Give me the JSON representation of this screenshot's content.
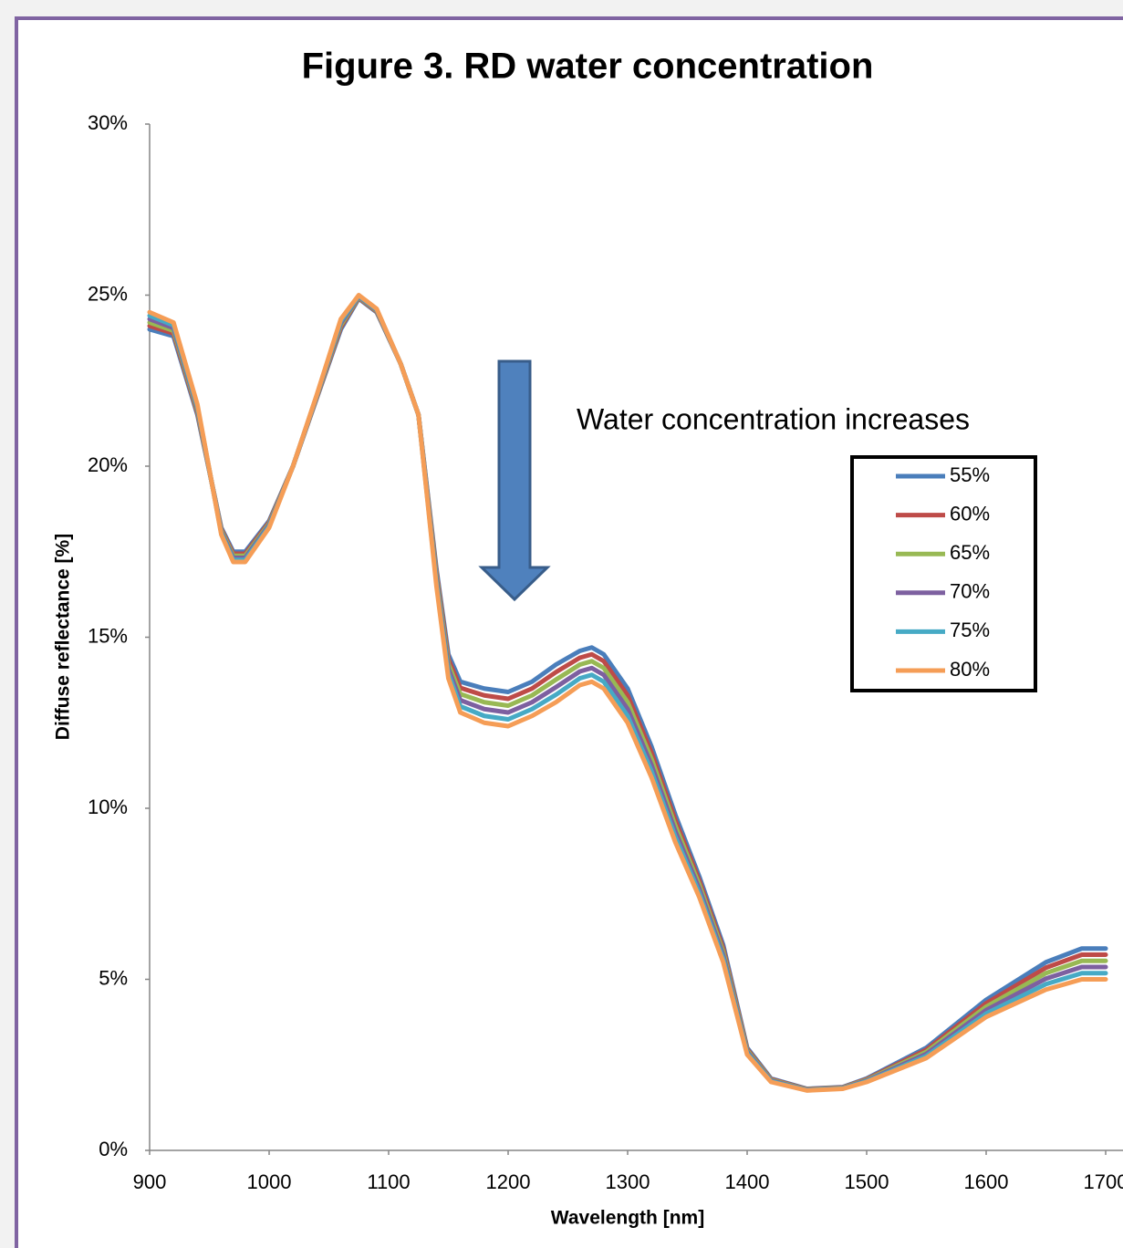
{
  "chart_data": {
    "type": "line",
    "title": "Figure 3. RD water concentration",
    "xlabel": "Wavelength [nm]",
    "ylabel": "Diffuse reflectance [%]",
    "annotation": "Water concentration increases",
    "xlim": [
      900,
      1700
    ],
    "xticks": [
      900,
      1000,
      1100,
      1200,
      1300,
      1400,
      1500,
      1600,
      1700
    ],
    "ylim": [
      0,
      30
    ],
    "yticks": [
      {
        "value": 0,
        "label": "0%"
      },
      {
        "value": 5,
        "label": "5%"
      },
      {
        "value": 10,
        "label": "10%"
      },
      {
        "value": 15,
        "label": "15%"
      },
      {
        "value": 20,
        "label": "20%"
      },
      {
        "value": 25,
        "label": "25%"
      },
      {
        "value": 30,
        "label": "30%"
      }
    ],
    "grid": false,
    "x": [
      900,
      920,
      940,
      960,
      970,
      980,
      1000,
      1020,
      1040,
      1060,
      1075,
      1090,
      1110,
      1125,
      1140,
      1150,
      1160,
      1180,
      1200,
      1220,
      1240,
      1260,
      1270,
      1280,
      1300,
      1320,
      1340,
      1360,
      1380,
      1400,
      1420,
      1450,
      1480,
      1500,
      1550,
      1600,
      1650,
      1680,
      1700
    ],
    "series": [
      {
        "name": "55%",
        "color": "#4a7ebb",
        "values": [
          24.0,
          23.8,
          21.5,
          18.2,
          17.5,
          17.5,
          18.4,
          20.0,
          22.0,
          24.0,
          24.9,
          24.5,
          23.0,
          21.5,
          17.0,
          14.5,
          13.7,
          13.5,
          13.4,
          13.7,
          14.2,
          14.6,
          14.7,
          14.5,
          13.5,
          11.8,
          9.8,
          8.0,
          6.0,
          3.0,
          2.1,
          1.8,
          1.85,
          2.1,
          3.0,
          4.4,
          5.5,
          5.9,
          5.9
        ]
      },
      {
        "name": "60%",
        "color": "#be4b48",
        "values": [
          24.1,
          23.88,
          21.56,
          18.16,
          17.44,
          17.44,
          18.36,
          20.0,
          22.02,
          24.06,
          24.92,
          24.52,
          23.0,
          21.5,
          16.9,
          14.36,
          13.52,
          13.3,
          13.2,
          13.5,
          13.98,
          14.4,
          14.5,
          14.3,
          13.3,
          11.62,
          9.64,
          7.88,
          5.9,
          2.96,
          2.08,
          1.79,
          1.84,
          2.08,
          2.94,
          4.3,
          5.34,
          5.72,
          5.72
        ]
      },
      {
        "name": "65%",
        "color": "#98b954",
        "values": [
          24.2,
          23.96,
          21.62,
          18.12,
          17.38,
          17.38,
          18.32,
          20.0,
          22.04,
          24.12,
          24.94,
          24.54,
          23.0,
          21.5,
          16.8,
          14.22,
          13.34,
          13.1,
          13.0,
          13.3,
          13.76,
          14.2,
          14.3,
          14.1,
          13.1,
          11.44,
          9.48,
          7.76,
          5.8,
          2.92,
          2.06,
          1.78,
          1.83,
          2.06,
          2.88,
          4.2,
          5.18,
          5.54,
          5.54
        ]
      },
      {
        "name": "70%",
        "color": "#7d60a0",
        "values": [
          24.3,
          24.04,
          21.68,
          18.08,
          17.32,
          17.32,
          18.28,
          20.0,
          22.06,
          24.18,
          24.96,
          24.56,
          23.0,
          21.5,
          16.7,
          14.08,
          13.16,
          12.9,
          12.8,
          13.1,
          13.54,
          14.0,
          14.1,
          13.9,
          12.9,
          11.26,
          9.32,
          7.64,
          5.7,
          2.88,
          2.04,
          1.77,
          1.82,
          2.04,
          2.82,
          4.1,
          5.02,
          5.36,
          5.36
        ]
      },
      {
        "name": "75%",
        "color": "#46aac5",
        "values": [
          24.4,
          24.12,
          21.74,
          18.04,
          17.26,
          17.26,
          18.24,
          20.0,
          22.08,
          24.24,
          24.98,
          24.58,
          23.0,
          21.5,
          16.6,
          13.94,
          12.98,
          12.7,
          12.6,
          12.9,
          13.32,
          13.8,
          13.9,
          13.7,
          12.7,
          11.08,
          9.16,
          7.52,
          5.6,
          2.84,
          2.02,
          1.76,
          1.81,
          2.02,
          2.76,
          4.0,
          4.86,
          5.18,
          5.18
        ]
      },
      {
        "name": "80%",
        "color": "#f59d56",
        "values": [
          24.5,
          24.2,
          21.8,
          18.0,
          17.2,
          17.2,
          18.2,
          20.0,
          22.1,
          24.3,
          25.0,
          24.6,
          23.0,
          21.5,
          16.5,
          13.8,
          12.8,
          12.5,
          12.4,
          12.7,
          13.1,
          13.6,
          13.7,
          13.5,
          12.5,
          10.9,
          9.0,
          7.4,
          5.5,
          2.8,
          2.0,
          1.75,
          1.8,
          2.0,
          2.7,
          3.9,
          4.7,
          5.0,
          5.0
        ]
      }
    ]
  }
}
